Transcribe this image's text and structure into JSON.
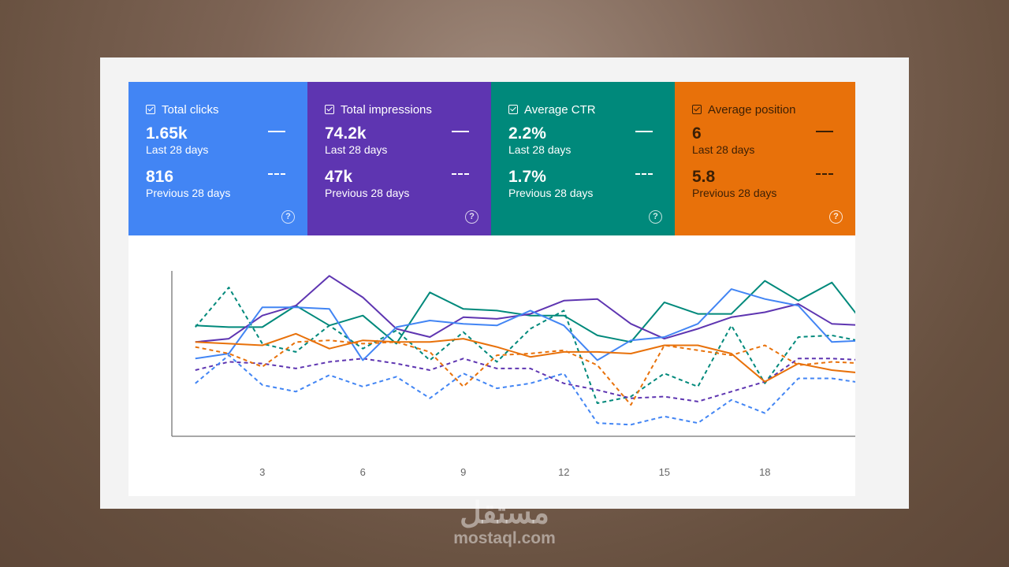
{
  "cards": [
    {
      "id": "clicks",
      "title": "Total clicks",
      "current": "1.65k",
      "current_label": "Last 28 days",
      "previous": "816",
      "previous_label": "Previous 28 days",
      "color": "#4285f4"
    },
    {
      "id": "impressions",
      "title": "Total impressions",
      "current": "74.2k",
      "current_label": "Last 28 days",
      "previous": "47k",
      "previous_label": "Previous 28 days",
      "color": "#5e35b1"
    },
    {
      "id": "ctr",
      "title": "Average CTR",
      "current": "2.2%",
      "current_label": "Last 28 days",
      "previous": "1.7%",
      "previous_label": "Previous 28 days",
      "color": "#00897b"
    },
    {
      "id": "position",
      "title": "Average position",
      "current": "6",
      "current_label": "Last 28 days",
      "previous": "5.8",
      "previous_label": "Previous 28 days",
      "color": "#e8710a"
    }
  ],
  "help_glyph": "?",
  "watermark": {
    "arabic": "مستقل",
    "latin": "mostaql.com"
  },
  "chart_data": {
    "type": "line",
    "x": [
      1,
      2,
      3,
      4,
      5,
      6,
      7,
      8,
      9,
      10,
      11,
      12,
      13,
      14,
      15,
      16,
      17,
      18,
      19,
      20,
      21
    ],
    "x_ticks": [
      3,
      6,
      9,
      12,
      15,
      18
    ],
    "xlim": [
      0.3,
      20.7
    ],
    "ylim": [
      0,
      100
    ],
    "grid": false,
    "series": [
      {
        "color": "#00897b",
        "style": "solid",
        "values": [
          67,
          66,
          66,
          79,
          67,
          73,
          56,
          87,
          77,
          76,
          73,
          73,
          61,
          57,
          81,
          74,
          74,
          94,
          82,
          93,
          67
        ]
      },
      {
        "color": "#00897b",
        "style": "dashed",
        "values": [
          66,
          90,
          56,
          51,
          67,
          53,
          64,
          46,
          63,
          45,
          65,
          76,
          20,
          24,
          38,
          30,
          67,
          32,
          60,
          61,
          57
        ]
      },
      {
        "color": "#5e35b1",
        "style": "solid",
        "values": [
          57,
          59,
          73,
          79,
          97,
          84,
          65,
          60,
          72,
          71,
          74,
          82,
          83,
          68,
          59,
          65,
          72,
          75,
          80,
          68,
          67
        ]
      },
      {
        "color": "#5e35b1",
        "style": "dashed",
        "values": [
          40,
          45,
          44,
          41,
          45,
          47,
          44,
          40,
          47,
          41,
          41,
          32,
          28,
          23,
          24,
          21,
          27,
          33,
          47,
          47,
          46
        ]
      },
      {
        "color": "#4285f4",
        "solid_note": "",
        "style": "solid",
        "values": [
          47,
          50,
          78,
          78,
          77,
          46,
          66,
          70,
          68,
          67,
          76,
          67,
          46,
          58,
          60,
          68,
          89,
          83,
          79,
          57,
          58
        ]
      },
      {
        "color": "#4285f4",
        "style": "dashed",
        "values": [
          32,
          49,
          31,
          27,
          37,
          30,
          36,
          23,
          38,
          29,
          32,
          38,
          8,
          7,
          12,
          8,
          22,
          14,
          35,
          35,
          32
        ]
      },
      {
        "color": "#e8710a",
        "style": "solid",
        "values": [
          57,
          56,
          55,
          62,
          53,
          58,
          57,
          57,
          59,
          54,
          48,
          51,
          51,
          50,
          55,
          55,
          50,
          33,
          44,
          40,
          38
        ]
      },
      {
        "color": "#e8710a",
        "style": "dashed",
        "values": [
          54,
          50,
          42,
          57,
          58,
          56,
          57,
          51,
          30,
          49,
          50,
          52,
          43,
          19,
          55,
          52,
          49,
          55,
          43,
          45,
          44
        ]
      }
    ]
  }
}
